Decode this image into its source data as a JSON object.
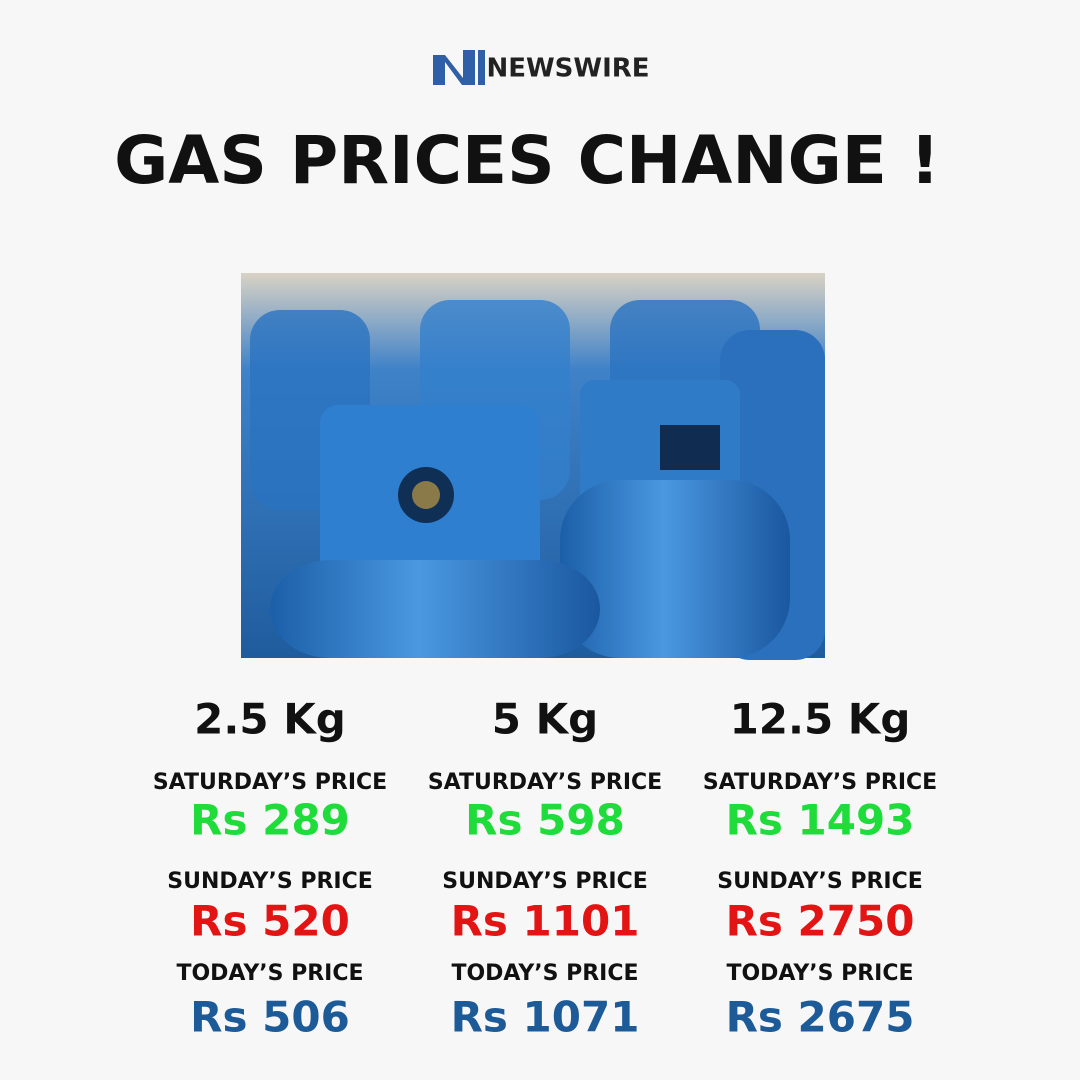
{
  "header": {
    "brand": "NEWSWIRE",
    "title": "GAS PRICES CHANGE !"
  },
  "columns": [
    {
      "size": "2.5 Kg",
      "prices": [
        {
          "label": "SATURDAY’S PRICE",
          "value": "Rs 289"
        },
        {
          "label": "SUNDAY’S PRICE",
          "value": "Rs 520"
        },
        {
          "label": "TODAY’S PRICE",
          "value": "Rs 506"
        }
      ]
    },
    {
      "size": "5 Kg",
      "prices": [
        {
          "label": "SATURDAY’S PRICE",
          "value": "Rs 598"
        },
        {
          "label": "SUNDAY’S PRICE",
          "value": "Rs 1101"
        },
        {
          "label": "TODAY’S PRICE",
          "value": "Rs 1071"
        }
      ]
    },
    {
      "size": "12.5 Kg",
      "prices": [
        {
          "label": "SATURDAY’S PRICE",
          "value": "Rs 1493"
        },
        {
          "label": "SUNDAY’S PRICE",
          "value": "Rs 2750"
        },
        {
          "label": "TODAY’S PRICE",
          "value": "Rs 2675"
        }
      ]
    }
  ]
}
